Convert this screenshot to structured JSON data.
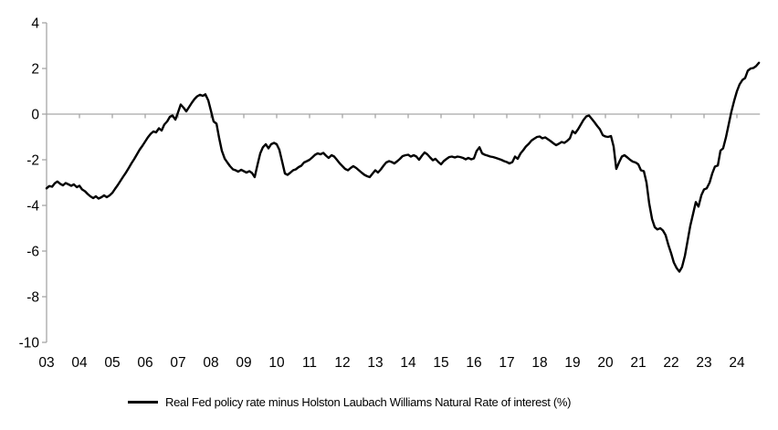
{
  "figure": {
    "background": "#ffffff",
    "line_color": "#000000",
    "axis_color": "#a6a6a6",
    "label_color": "#000000"
  },
  "legend": {
    "label": "Real Fed policy rate minus Holston Laubach Williams Natural Rate of interest (%)"
  },
  "chart_data": {
    "type": "line",
    "title": "",
    "xlabel": "",
    "ylabel": "",
    "ylim": [
      -10,
      4
    ],
    "xlim": [
      2003,
      2024.7
    ],
    "yticks": [
      4,
      2,
      0,
      -2,
      -4,
      -6,
      -8,
      -10
    ],
    "x_tick_years": [
      2003,
      2004,
      2005,
      2006,
      2007,
      2008,
      2009,
      2010,
      2011,
      2012,
      2013,
      2014,
      2015,
      2016,
      2017,
      2018,
      2019,
      2020,
      2021,
      2022,
      2023,
      2024
    ],
    "x_tick_labels": [
      "03",
      "04",
      "05",
      "06",
      "07",
      "08",
      "09",
      "10",
      "11",
      "12",
      "13",
      "14",
      "15",
      "16",
      "17",
      "18",
      "19",
      "20",
      "21",
      "22",
      "23",
      "24"
    ],
    "grid": "zero-line-only",
    "legend_position": "bottom-center",
    "series": [
      {
        "name": "Real Fed policy rate minus Holston Laubach Williams Natural Rate of interest (%)",
        "color": "#000000",
        "points": [
          [
            2003.0,
            -3.25
          ],
          [
            2003.08,
            -3.15
          ],
          [
            2003.17,
            -3.18
          ],
          [
            2003.25,
            -3.03
          ],
          [
            2003.33,
            -2.95
          ],
          [
            2003.42,
            -3.06
          ],
          [
            2003.5,
            -3.12
          ],
          [
            2003.58,
            -3.02
          ],
          [
            2003.67,
            -3.08
          ],
          [
            2003.75,
            -3.14
          ],
          [
            2003.83,
            -3.08
          ],
          [
            2003.92,
            -3.2
          ],
          [
            2004.0,
            -3.14
          ],
          [
            2004.08,
            -3.3
          ],
          [
            2004.17,
            -3.38
          ],
          [
            2004.25,
            -3.5
          ],
          [
            2004.33,
            -3.6
          ],
          [
            2004.42,
            -3.68
          ],
          [
            2004.5,
            -3.6
          ],
          [
            2004.58,
            -3.7
          ],
          [
            2004.67,
            -3.64
          ],
          [
            2004.75,
            -3.56
          ],
          [
            2004.83,
            -3.64
          ],
          [
            2004.92,
            -3.56
          ],
          [
            2005.0,
            -3.45
          ],
          [
            2005.08,
            -3.28
          ],
          [
            2005.17,
            -3.1
          ],
          [
            2005.25,
            -2.92
          ],
          [
            2005.33,
            -2.74
          ],
          [
            2005.42,
            -2.55
          ],
          [
            2005.5,
            -2.36
          ],
          [
            2005.58,
            -2.16
          ],
          [
            2005.67,
            -1.96
          ],
          [
            2005.75,
            -1.76
          ],
          [
            2005.83,
            -1.56
          ],
          [
            2005.92,
            -1.38
          ],
          [
            2006.0,
            -1.2
          ],
          [
            2006.08,
            -1.02
          ],
          [
            2006.17,
            -0.86
          ],
          [
            2006.25,
            -0.76
          ],
          [
            2006.33,
            -0.8
          ],
          [
            2006.42,
            -0.62
          ],
          [
            2006.5,
            -0.72
          ],
          [
            2006.58,
            -0.46
          ],
          [
            2006.67,
            -0.32
          ],
          [
            2006.75,
            -0.12
          ],
          [
            2006.83,
            -0.06
          ],
          [
            2006.92,
            -0.24
          ],
          [
            2007.0,
            0.08
          ],
          [
            2007.08,
            0.42
          ],
          [
            2007.17,
            0.28
          ],
          [
            2007.25,
            0.12
          ],
          [
            2007.33,
            0.3
          ],
          [
            2007.42,
            0.5
          ],
          [
            2007.5,
            0.66
          ],
          [
            2007.58,
            0.78
          ],
          [
            2007.67,
            0.85
          ],
          [
            2007.75,
            0.8
          ],
          [
            2007.83,
            0.87
          ],
          [
            2007.92,
            0.6
          ],
          [
            2008.0,
            0.15
          ],
          [
            2008.08,
            -0.32
          ],
          [
            2008.17,
            -0.42
          ],
          [
            2008.25,
            -1.05
          ],
          [
            2008.33,
            -1.6
          ],
          [
            2008.42,
            -1.95
          ],
          [
            2008.5,
            -2.12
          ],
          [
            2008.58,
            -2.28
          ],
          [
            2008.67,
            -2.42
          ],
          [
            2008.75,
            -2.46
          ],
          [
            2008.83,
            -2.52
          ],
          [
            2008.92,
            -2.44
          ],
          [
            2009.0,
            -2.5
          ],
          [
            2009.08,
            -2.56
          ],
          [
            2009.17,
            -2.5
          ],
          [
            2009.25,
            -2.58
          ],
          [
            2009.33,
            -2.76
          ],
          [
            2009.42,
            -2.2
          ],
          [
            2009.5,
            -1.72
          ],
          [
            2009.58,
            -1.45
          ],
          [
            2009.67,
            -1.32
          ],
          [
            2009.75,
            -1.5
          ],
          [
            2009.83,
            -1.32
          ],
          [
            2009.92,
            -1.26
          ],
          [
            2010.0,
            -1.32
          ],
          [
            2010.08,
            -1.56
          ],
          [
            2010.17,
            -2.1
          ],
          [
            2010.25,
            -2.6
          ],
          [
            2010.33,
            -2.66
          ],
          [
            2010.42,
            -2.56
          ],
          [
            2010.5,
            -2.46
          ],
          [
            2010.58,
            -2.42
          ],
          [
            2010.67,
            -2.32
          ],
          [
            2010.75,
            -2.26
          ],
          [
            2010.83,
            -2.12
          ],
          [
            2010.92,
            -2.06
          ],
          [
            2011.0,
            -2.0
          ],
          [
            2011.08,
            -1.9
          ],
          [
            2011.17,
            -1.78
          ],
          [
            2011.25,
            -1.72
          ],
          [
            2011.33,
            -1.76
          ],
          [
            2011.42,
            -1.7
          ],
          [
            2011.5,
            -1.82
          ],
          [
            2011.58,
            -1.92
          ],
          [
            2011.67,
            -1.8
          ],
          [
            2011.75,
            -1.86
          ],
          [
            2011.83,
            -2.0
          ],
          [
            2011.92,
            -2.16
          ],
          [
            2012.0,
            -2.28
          ],
          [
            2012.08,
            -2.4
          ],
          [
            2012.17,
            -2.46
          ],
          [
            2012.25,
            -2.36
          ],
          [
            2012.33,
            -2.28
          ],
          [
            2012.42,
            -2.36
          ],
          [
            2012.5,
            -2.46
          ],
          [
            2012.58,
            -2.56
          ],
          [
            2012.67,
            -2.66
          ],
          [
            2012.75,
            -2.72
          ],
          [
            2012.83,
            -2.76
          ],
          [
            2012.92,
            -2.6
          ],
          [
            2013.0,
            -2.46
          ],
          [
            2013.08,
            -2.56
          ],
          [
            2013.17,
            -2.42
          ],
          [
            2013.25,
            -2.26
          ],
          [
            2013.33,
            -2.12
          ],
          [
            2013.42,
            -2.06
          ],
          [
            2013.5,
            -2.1
          ],
          [
            2013.58,
            -2.16
          ],
          [
            2013.67,
            -2.06
          ],
          [
            2013.75,
            -1.96
          ],
          [
            2013.83,
            -1.84
          ],
          [
            2013.92,
            -1.8
          ],
          [
            2014.0,
            -1.78
          ],
          [
            2014.08,
            -1.86
          ],
          [
            2014.17,
            -1.8
          ],
          [
            2014.25,
            -1.86
          ],
          [
            2014.33,
            -2.0
          ],
          [
            2014.42,
            -1.82
          ],
          [
            2014.5,
            -1.68
          ],
          [
            2014.58,
            -1.76
          ],
          [
            2014.67,
            -1.9
          ],
          [
            2014.75,
            -2.02
          ],
          [
            2014.83,
            -1.96
          ],
          [
            2014.92,
            -2.1
          ],
          [
            2015.0,
            -2.2
          ],
          [
            2015.08,
            -2.06
          ],
          [
            2015.17,
            -1.96
          ],
          [
            2015.25,
            -1.88
          ],
          [
            2015.33,
            -1.86
          ],
          [
            2015.42,
            -1.9
          ],
          [
            2015.5,
            -1.86
          ],
          [
            2015.58,
            -1.88
          ],
          [
            2015.67,
            -1.92
          ],
          [
            2015.75,
            -1.98
          ],
          [
            2015.83,
            -1.92
          ],
          [
            2015.92,
            -1.98
          ],
          [
            2016.0,
            -1.94
          ],
          [
            2016.08,
            -1.62
          ],
          [
            2016.17,
            -1.45
          ],
          [
            2016.25,
            -1.72
          ],
          [
            2016.33,
            -1.78
          ],
          [
            2016.42,
            -1.82
          ],
          [
            2016.5,
            -1.86
          ],
          [
            2016.58,
            -1.88
          ],
          [
            2016.67,
            -1.92
          ],
          [
            2016.75,
            -1.96
          ],
          [
            2016.83,
            -2.0
          ],
          [
            2016.92,
            -2.06
          ],
          [
            2017.0,
            -2.1
          ],
          [
            2017.08,
            -2.16
          ],
          [
            2017.17,
            -2.1
          ],
          [
            2017.25,
            -1.86
          ],
          [
            2017.33,
            -1.96
          ],
          [
            2017.42,
            -1.72
          ],
          [
            2017.5,
            -1.58
          ],
          [
            2017.58,
            -1.42
          ],
          [
            2017.67,
            -1.3
          ],
          [
            2017.75,
            -1.16
          ],
          [
            2017.83,
            -1.08
          ],
          [
            2017.92,
            -1.0
          ],
          [
            2018.0,
            -0.98
          ],
          [
            2018.08,
            -1.06
          ],
          [
            2018.17,
            -1.02
          ],
          [
            2018.25,
            -1.1
          ],
          [
            2018.33,
            -1.18
          ],
          [
            2018.42,
            -1.28
          ],
          [
            2018.5,
            -1.36
          ],
          [
            2018.58,
            -1.3
          ],
          [
            2018.67,
            -1.22
          ],
          [
            2018.75,
            -1.26
          ],
          [
            2018.83,
            -1.18
          ],
          [
            2018.92,
            -1.06
          ],
          [
            2019.0,
            -0.74
          ],
          [
            2019.08,
            -0.84
          ],
          [
            2019.17,
            -0.66
          ],
          [
            2019.25,
            -0.46
          ],
          [
            2019.33,
            -0.26
          ],
          [
            2019.42,
            -0.1
          ],
          [
            2019.5,
            -0.06
          ],
          [
            2019.58,
            -0.2
          ],
          [
            2019.67,
            -0.36
          ],
          [
            2019.75,
            -0.52
          ],
          [
            2019.83,
            -0.66
          ],
          [
            2019.92,
            -0.92
          ],
          [
            2020.0,
            -0.98
          ],
          [
            2020.08,
            -1.0
          ],
          [
            2020.17,
            -0.96
          ],
          [
            2020.25,
            -1.42
          ],
          [
            2020.33,
            -2.4
          ],
          [
            2020.42,
            -2.1
          ],
          [
            2020.5,
            -1.86
          ],
          [
            2020.58,
            -1.8
          ],
          [
            2020.67,
            -1.9
          ],
          [
            2020.75,
            -2.0
          ],
          [
            2020.83,
            -2.08
          ],
          [
            2020.92,
            -2.12
          ],
          [
            2021.0,
            -2.2
          ],
          [
            2021.08,
            -2.46
          ],
          [
            2021.17,
            -2.5
          ],
          [
            2021.25,
            -3.0
          ],
          [
            2021.33,
            -3.9
          ],
          [
            2021.42,
            -4.6
          ],
          [
            2021.5,
            -4.95
          ],
          [
            2021.58,
            -5.05
          ],
          [
            2021.67,
            -5.0
          ],
          [
            2021.75,
            -5.1
          ],
          [
            2021.83,
            -5.3
          ],
          [
            2021.92,
            -5.75
          ],
          [
            2022.0,
            -6.1
          ],
          [
            2022.08,
            -6.5
          ],
          [
            2022.17,
            -6.75
          ],
          [
            2022.25,
            -6.9
          ],
          [
            2022.33,
            -6.7
          ],
          [
            2022.42,
            -6.2
          ],
          [
            2022.5,
            -5.55
          ],
          [
            2022.58,
            -4.9
          ],
          [
            2022.67,
            -4.35
          ],
          [
            2022.75,
            -3.85
          ],
          [
            2022.83,
            -4.05
          ],
          [
            2022.92,
            -3.55
          ],
          [
            2023.0,
            -3.3
          ],
          [
            2023.08,
            -3.25
          ],
          [
            2023.17,
            -3.0
          ],
          [
            2023.25,
            -2.6
          ],
          [
            2023.33,
            -2.3
          ],
          [
            2023.42,
            -2.25
          ],
          [
            2023.5,
            -1.6
          ],
          [
            2023.58,
            -1.5
          ],
          [
            2023.67,
            -1.0
          ],
          [
            2023.75,
            -0.45
          ],
          [
            2023.83,
            0.1
          ],
          [
            2023.92,
            0.6
          ],
          [
            2024.0,
            1.0
          ],
          [
            2024.08,
            1.3
          ],
          [
            2024.17,
            1.5
          ],
          [
            2024.25,
            1.58
          ],
          [
            2024.33,
            1.9
          ],
          [
            2024.42,
            2.0
          ],
          [
            2024.5,
            2.02
          ],
          [
            2024.58,
            2.1
          ],
          [
            2024.67,
            2.25
          ]
        ]
      }
    ]
  }
}
